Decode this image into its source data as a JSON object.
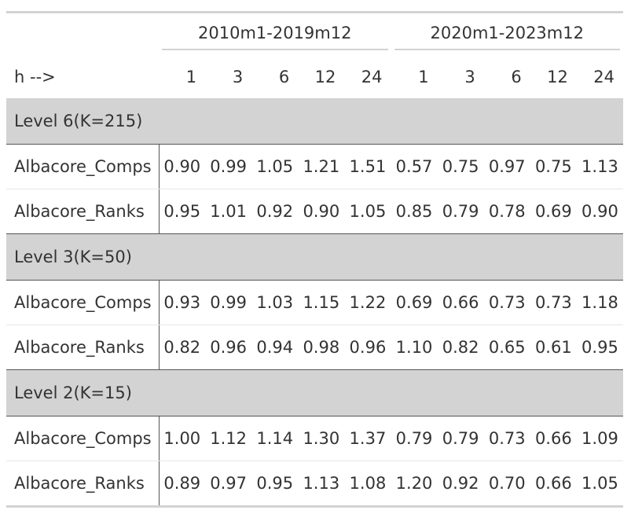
{
  "table": {
    "spanners": [
      "2010m1-2019m12",
      "2020m1-2023m12"
    ],
    "h_label": "h -->",
    "horizons": [
      "1",
      "3",
      "6",
      "12",
      "24",
      "1",
      "3",
      "6",
      "12",
      "24"
    ],
    "groups": [
      {
        "label": "Level 6(K=215)",
        "rows": [
          {
            "name": "Albacore_Comps",
            "values": [
              "0.90",
              "0.99",
              "1.05",
              "1.21",
              "1.51",
              "0.57",
              "0.75",
              "0.97",
              "0.75",
              "1.13"
            ]
          },
          {
            "name": "Albacore_Ranks",
            "values": [
              "0.95",
              "1.01",
              "0.92",
              "0.90",
              "1.05",
              "0.85",
              "0.79",
              "0.78",
              "0.69",
              "0.90"
            ]
          }
        ]
      },
      {
        "label": "Level 3(K=50)",
        "rows": [
          {
            "name": "Albacore_Comps",
            "values": [
              "0.93",
              "0.99",
              "1.03",
              "1.15",
              "1.22",
              "0.69",
              "0.66",
              "0.73",
              "0.73",
              "1.18"
            ]
          },
          {
            "name": "Albacore_Ranks",
            "values": [
              "0.82",
              "0.96",
              "0.94",
              "0.98",
              "0.96",
              "1.10",
              "0.82",
              "0.65",
              "0.61",
              "0.95"
            ]
          }
        ]
      },
      {
        "label": "Level 2(K=15)",
        "rows": [
          {
            "name": "Albacore_Comps",
            "values": [
              "1.00",
              "1.12",
              "1.14",
              "1.30",
              "1.37",
              "0.79",
              "0.79",
              "0.73",
              "0.66",
              "1.09"
            ]
          },
          {
            "name": "Albacore_Ranks",
            "values": [
              "0.89",
              "0.97",
              "0.95",
              "1.13",
              "1.08",
              "1.20",
              "0.92",
              "0.70",
              "0.66",
              "1.05"
            ]
          }
        ]
      }
    ]
  }
}
